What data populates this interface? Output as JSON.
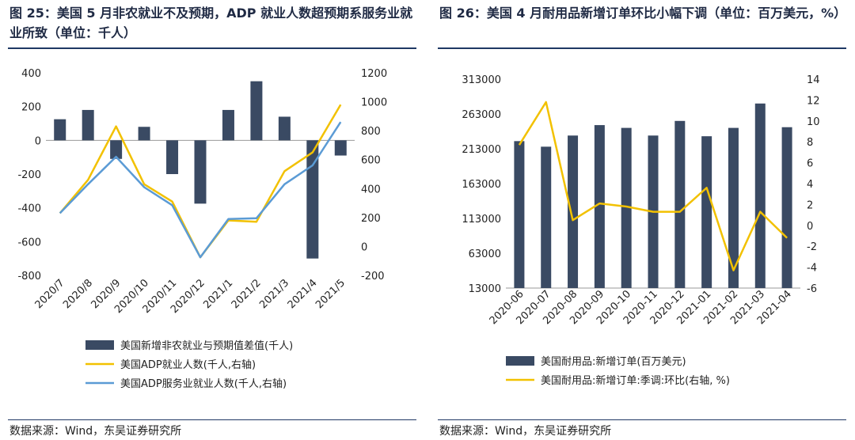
{
  "chart_data": [
    {
      "type": "bar",
      "title": "图 25：美国 5 月非农就业不及预期，ADP 就业人数超预期系服务业就业所致（单位：千人）",
      "source": "数据来源：Wind，东吴证券研究所",
      "categories": [
        "2020/7",
        "2020/8",
        "2020/9",
        "2020/10",
        "2020/11",
        "2020/12",
        "2021/1",
        "2021/2",
        "2021/3",
        "2021/4",
        "2021/5"
      ],
      "y_left": {
        "range": [
          -800,
          400
        ],
        "ticks": [
          "400",
          "200",
          "0",
          "-200",
          "-400",
          "-600",
          "-800"
        ]
      },
      "y_right": {
        "range": [
          -200,
          1200
        ],
        "ticks": [
          "1200",
          "1000",
          "800",
          "600",
          "400",
          "200",
          "0",
          "-200"
        ]
      },
      "series": [
        {
          "name": "美国新增非农就业与预期值差值(千人)",
          "type": "bar",
          "axis": "left",
          "color": "#3a4a63",
          "values": [
            125,
            180,
            -110,
            80,
            -200,
            -375,
            180,
            350,
            140,
            -700,
            -90
          ]
        },
        {
          "name": "美国ADP就业人数(千人,右轴)",
          "type": "line",
          "axis": "right",
          "color": "#f2c100",
          "values": [
            230,
            460,
            830,
            430,
            310,
            -75,
            180,
            170,
            520,
            650,
            980
          ]
        },
        {
          "name": "美国ADP服务业就业人数(千人,右轴)",
          "type": "line",
          "axis": "right",
          "color": "#5b9bd5",
          "values": [
            230,
            430,
            620,
            410,
            285,
            -75,
            190,
            195,
            430,
            560,
            860
          ]
        }
      ]
    },
    {
      "type": "bar",
      "title": "图 26：美国 4 月耐用品新增订单环比小幅下调（单位：百万美元，%）",
      "source": "数据来源：Wind，东吴证券研究所",
      "categories": [
        "2020-06",
        "2020-07",
        "2020-08",
        "2020-09",
        "2020-10",
        "2020-11",
        "2020-12",
        "2021-01",
        "2021-02",
        "2021-03",
        "2021-04"
      ],
      "y_left": {
        "range": [
          13000,
          313000
        ],
        "ticks": [
          "313000",
          "263000",
          "213000",
          "163000",
          "113000",
          "63000",
          "13000"
        ]
      },
      "y_right": {
        "range": [
          -6,
          14
        ],
        "ticks": [
          "14",
          "12",
          "10",
          "8",
          "6",
          "4",
          "2",
          "0",
          "-2",
          "-4",
          "-6"
        ]
      },
      "series": [
        {
          "name": "美国耐用品:新增订单(百万美元)",
          "type": "bar",
          "axis": "left",
          "color": "#3a4a63",
          "values": [
            224000,
            216000,
            232000,
            247000,
            243000,
            232000,
            253000,
            231000,
            243000,
            278000,
            244000
          ]
        },
        {
          "name": "美国耐用品:新增订单:季调:环比(右轴, %)",
          "type": "line",
          "axis": "right",
          "color": "#f2c100",
          "values": [
            7.7,
            11.8,
            0.5,
            2.1,
            1.8,
            1.3,
            1.3,
            3.6,
            -4.3,
            1.3,
            -1.2
          ]
        }
      ]
    }
  ]
}
